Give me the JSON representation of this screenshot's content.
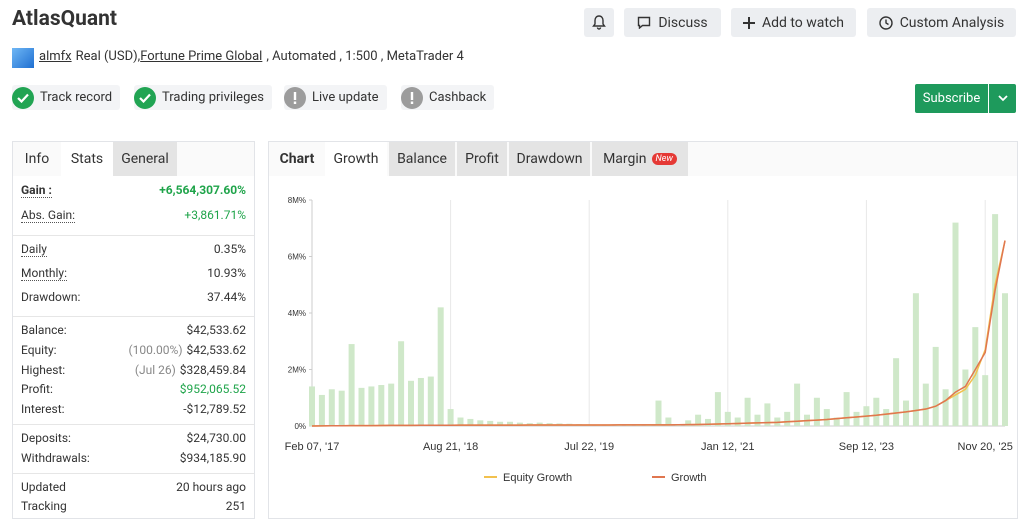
{
  "header": {
    "title": "AtlasQuant",
    "buttons": [
      "Discuss",
      "Add to watch",
      "Custom Analysis"
    ]
  },
  "account": {
    "user": "almfx",
    "type": "Real (USD),",
    "broker": "Fortune Prime Global",
    "details": ", Automated , 1:500 , MetaTrader 4"
  },
  "badges": [
    {
      "label": "Track record",
      "status": "ok"
    },
    {
      "label": "Trading privileges",
      "status": "ok"
    },
    {
      "label": "Live update",
      "status": "off"
    },
    {
      "label": "Cashback",
      "status": "off"
    }
  ],
  "subscribe": "Subscribe",
  "info_panel": {
    "tabs": [
      "Info",
      "Stats",
      "General"
    ],
    "groups": [
      [
        {
          "label": "Gain :",
          "value": "+6,564,307.60%",
          "color": "#1fa44a",
          "bold": true
        },
        {
          "label": "Abs. Gain:",
          "value": "+3,861.71%",
          "color": "#1fa44a"
        }
      ],
      [
        {
          "label": "Daily",
          "value": "0.35%"
        },
        {
          "label": "Monthly:",
          "value": "10.93%"
        },
        {
          "label": "Drawdown:",
          "value": "37.44%"
        }
      ],
      [
        {
          "label": "Balance:",
          "value": "$42,533.62"
        },
        {
          "label": "Equity:",
          "note": "(100.00%)",
          "value": "$42,533.62"
        },
        {
          "label": "Highest:",
          "note": "(Jul 26)",
          "value": "$328,459.84"
        },
        {
          "label": "Profit:",
          "value": "$952,065.52",
          "color": "#1fa44a"
        },
        {
          "label": "Interest:",
          "value": "-$12,789.52"
        }
      ],
      [
        {
          "label": "Deposits:",
          "value": "$24,730.00"
        },
        {
          "label": "Withdrawals:",
          "value": "$934,185.90"
        }
      ],
      [
        {
          "label": "Updated",
          "value": "20 hours ago"
        },
        {
          "label": "Tracking",
          "value": "251"
        }
      ]
    ]
  },
  "chart_panel": {
    "tabs": [
      "Chart",
      "Growth",
      "Balance",
      "Profit",
      "Drawdown",
      "Margin"
    ],
    "new_badge": "New"
  },
  "chart_data": {
    "type": "line",
    "categories": [
      "Feb 07, '17",
      null,
      null,
      null,
      null,
      null,
      null,
      null,
      null,
      null,
      null,
      null,
      null,
      null,
      "Aug 21, '18",
      null,
      null,
      null,
      null,
      null,
      null,
      null,
      null,
      null,
      null,
      null,
      null,
      null,
      "Jul 22, '19",
      null,
      null,
      null,
      null,
      null,
      null,
      null,
      null,
      null,
      null,
      null,
      null,
      null,
      "Jan 12, '21",
      null,
      null,
      null,
      null,
      null,
      null,
      null,
      null,
      null,
      null,
      null,
      null,
      null,
      "Sep 12, '23",
      null,
      null,
      null,
      null,
      null,
      null,
      null,
      null,
      null,
      null,
      null,
      "Nov 20, '25",
      null,
      null
    ],
    "series": [
      {
        "kind": "bar",
        "color": "#cfe8c9",
        "values": [
          1400000,
          1100000,
          1300000,
          1250000,
          2900000,
          1350000,
          1400000,
          1450000,
          1500000,
          3000000,
          1600000,
          1700000,
          1750000,
          4200000,
          600000,
          300000,
          250000,
          200000,
          180000,
          150000,
          150000,
          120000,
          100000,
          120000,
          100000,
          90000,
          80000,
          70000,
          60000,
          50000,
          40000,
          30000,
          30000,
          30000,
          40000,
          900000,
          300000,
          30000,
          200000,
          400000,
          250000,
          1200000,
          500000,
          300000,
          1000000,
          400000,
          800000,
          300000,
          500000,
          1500000,
          400000,
          1000000,
          600000,
          300000,
          1200000,
          500000,
          700000,
          1000000,
          600000,
          2400000,
          900000,
          4700000,
          1500000,
          2800000,
          1300000,
          7200000,
          2000000,
          3500000,
          1800000,
          7500000,
          4700000
        ]
      },
      {
        "name": "Equity Growth",
        "color": "#f2c14e",
        "values": [
          0,
          5000,
          8000,
          10000,
          12000,
          15000,
          15000,
          18000,
          20000,
          20000,
          22000,
          25000,
          25000,
          28000,
          28000,
          30000,
          30000,
          30000,
          32000,
          32000,
          33000,
          33000,
          34000,
          34000,
          35000,
          35000,
          36000,
          36000,
          36000,
          37000,
          37000,
          38000,
          38000,
          39000,
          40000,
          40000,
          42000,
          45000,
          50000,
          55000,
          60000,
          70000,
          80000,
          90000,
          100000,
          110000,
          120000,
          130000,
          150000,
          170000,
          190000,
          210000,
          230000,
          260000,
          290000,
          320000,
          350000,
          380000,
          420000,
          460000,
          500000,
          550000,
          600000,
          700000,
          900000,
          1100000,
          1300000,
          1800000,
          2700000,
          5000000,
          6560000
        ]
      },
      {
        "name": "Growth",
        "color": "#e0764f",
        "values": [
          0,
          5000,
          8000,
          10000,
          12000,
          15000,
          15000,
          18000,
          20000,
          20000,
          22000,
          25000,
          25000,
          28000,
          28000,
          30000,
          30000,
          30000,
          32000,
          32000,
          33000,
          33000,
          34000,
          34000,
          35000,
          35000,
          36000,
          36000,
          36000,
          37000,
          37000,
          38000,
          38000,
          39000,
          40000,
          40000,
          42000,
          45000,
          50000,
          55000,
          60000,
          70000,
          80000,
          90000,
          100000,
          110000,
          120000,
          130000,
          150000,
          170000,
          190000,
          210000,
          230000,
          260000,
          290000,
          320000,
          350000,
          380000,
          420000,
          460000,
          500000,
          550000,
          600000,
          700000,
          900000,
          1200000,
          1400000,
          2000000,
          2600000,
          4800000,
          6564308
        ]
      }
    ],
    "ylim": [
      0,
      8000000
    ],
    "yticks": [
      {
        "value": 0,
        "label": "0%"
      },
      {
        "value": 2000000,
        "label": "2M%"
      },
      {
        "value": 4000000,
        "label": "4M%"
      },
      {
        "value": 6000000,
        "label": "6M%"
      },
      {
        "value": 8000000,
        "label": "8M%"
      }
    ],
    "x_grid": true
  }
}
